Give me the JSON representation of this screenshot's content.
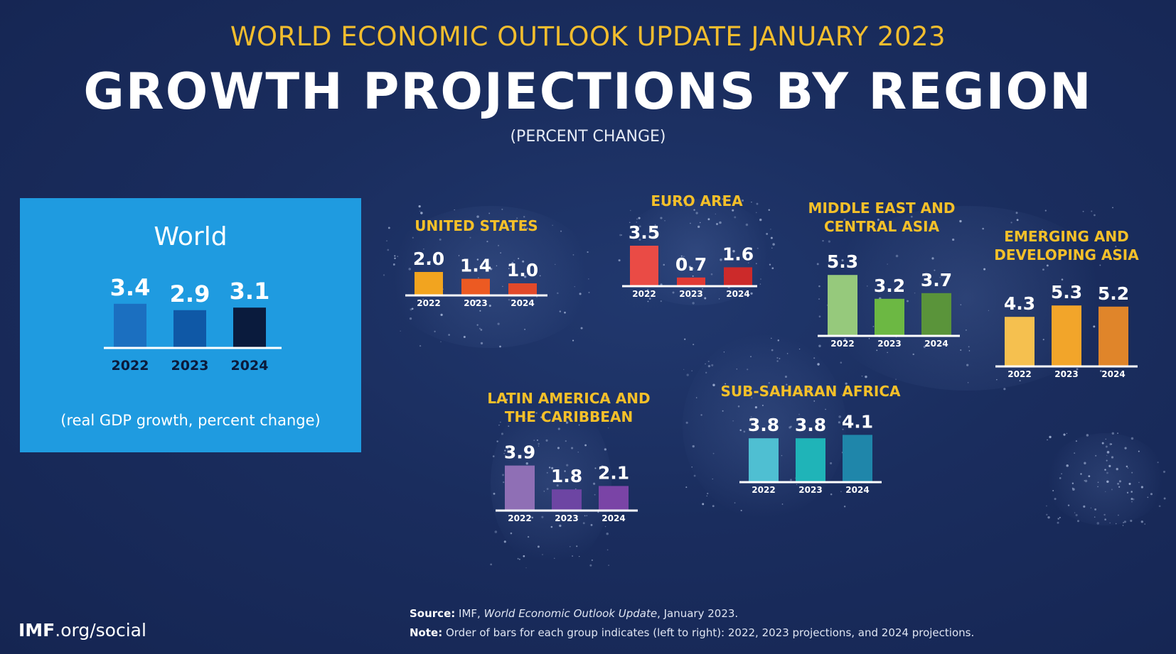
{
  "header": {
    "kicker": "WORLD ECONOMIC OUTLOOK UPDATE JANUARY 2023",
    "title": "GROWTH PROJECTIONS BY REGION",
    "subtitle": "(PERCENT CHANGE)"
  },
  "world_panel": {
    "title": "World",
    "note": "(real GDP growth, percent change)"
  },
  "chart_data": [
    {
      "type": "bar",
      "id": "world",
      "title": "World",
      "categories": [
        "2022",
        "2023",
        "2024"
      ],
      "values": [
        3.4,
        2.9,
        3.1
      ],
      "colors": [
        "#1b6fc0",
        "#0f58a6",
        "#0a1b3d"
      ]
    },
    {
      "type": "bar",
      "id": "us",
      "title": "UNITED STATES",
      "categories": [
        "2022",
        "2023",
        "2024"
      ],
      "values": [
        2.0,
        1.4,
        1.0
      ],
      "colors": [
        "#f2a41f",
        "#ec5a22",
        "#e2492a"
      ]
    },
    {
      "type": "bar",
      "id": "euro",
      "title": "EURO AREA",
      "categories": [
        "2022",
        "2023",
        "2024"
      ],
      "values": [
        3.5,
        0.7,
        1.6
      ],
      "colors": [
        "#ea4b45",
        "#e23a34",
        "#cc2a2a"
      ]
    },
    {
      "type": "bar",
      "id": "mecas",
      "title_lines": [
        "MIDDLE EAST AND",
        "CENTRAL ASIA"
      ],
      "categories": [
        "2022",
        "2023",
        "2024"
      ],
      "values": [
        5.3,
        3.2,
        3.7
      ],
      "colors": [
        "#96c97c",
        "#6cb843",
        "#5a943a"
      ]
    },
    {
      "type": "bar",
      "id": "eda",
      "title_lines": [
        "EMERGING AND",
        "DEVELOPING ASIA"
      ],
      "categories": [
        "2022",
        "2023",
        "2024"
      ],
      "values": [
        4.3,
        5.3,
        5.2
      ],
      "colors": [
        "#f5c04f",
        "#f2a52a",
        "#e0852a"
      ]
    },
    {
      "type": "bar",
      "id": "latam",
      "title_lines": [
        "LATIN AMERICA AND",
        "THE CARIBBEAN"
      ],
      "categories": [
        "2022",
        "2023",
        "2024"
      ],
      "values": [
        3.9,
        1.8,
        2.1
      ],
      "colors": [
        "#8f6fb5",
        "#6d45a3",
        "#7a44a6"
      ]
    },
    {
      "type": "bar",
      "id": "ssa",
      "title": "SUB-SAHARAN AFRICA",
      "categories": [
        "2022",
        "2023",
        "2024"
      ],
      "values": [
        3.8,
        3.8,
        4.1
      ],
      "colors": [
        "#4fbfd2",
        "#1fb4b8",
        "#1f86aa"
      ]
    }
  ],
  "footer": {
    "brand_bold": "IMF",
    "brand_rest": ".org/social",
    "source_label": "Source:",
    "source_pre": " IMF, ",
    "source_italic": "World Economic Outlook Update",
    "source_post": ", January 2023.",
    "note_label": "Note:",
    "note_text": " Order of bars for each group indicates (left to right): 2022, 2023 projections, and 2024 projections."
  }
}
